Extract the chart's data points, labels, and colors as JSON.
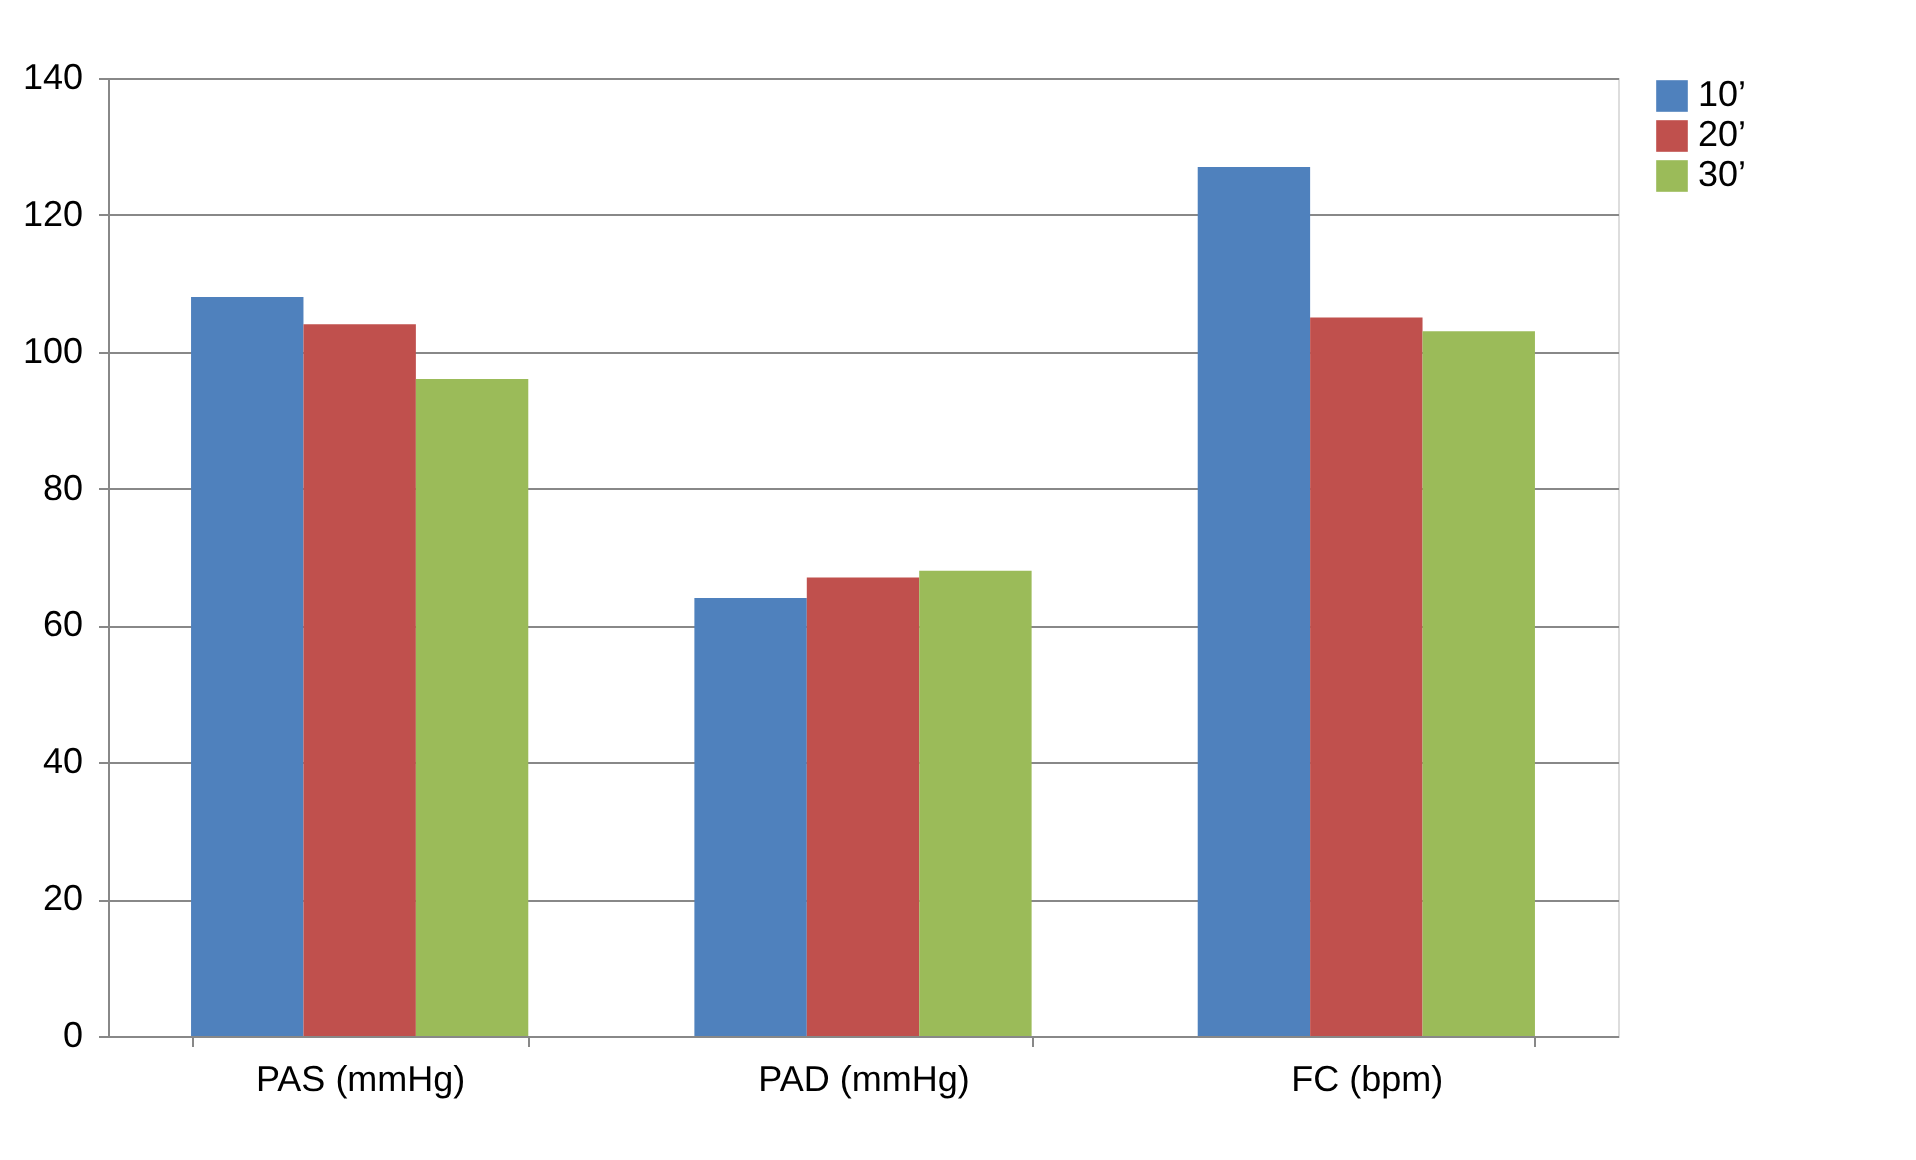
{
  "chart_data": {
    "type": "bar",
    "categories": [
      "PAS (mmHg)",
      "PAD (mmHg)",
      "FC (bpm)"
    ],
    "series": [
      {
        "name": "10’",
        "color": "#4f81bd",
        "values": [
          108,
          64,
          127
        ]
      },
      {
        "name": "20’",
        "color": "#c0504d",
        "values": [
          104,
          67,
          105
        ]
      },
      {
        "name": "30’",
        "color": "#9bbb59",
        "values": [
          96,
          68,
          103
        ]
      }
    ],
    "ylim": [
      0,
      140
    ],
    "yticks": [
      0,
      20,
      40,
      60,
      80,
      100,
      120,
      140
    ],
    "grid": "y",
    "legend": "right"
  }
}
